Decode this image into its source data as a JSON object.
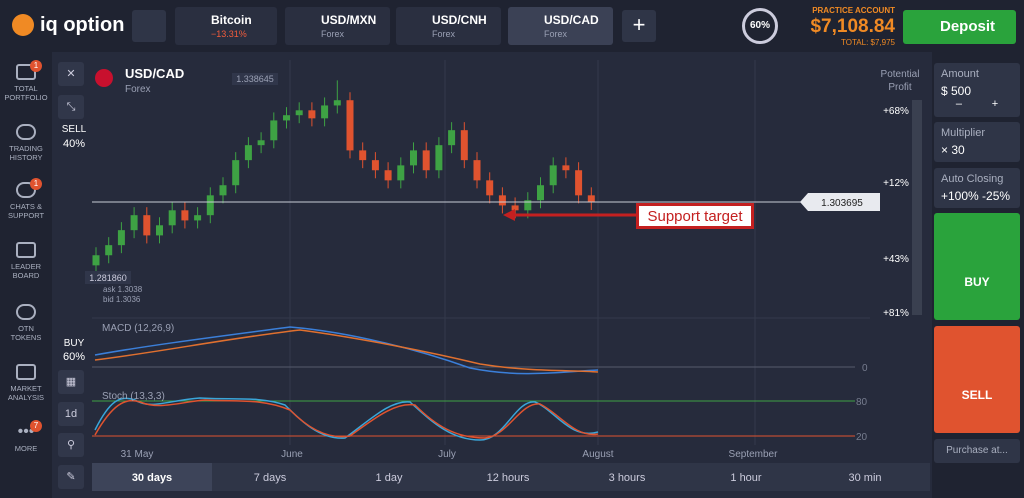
{
  "header": {
    "logo": "iq option",
    "tabs": [
      {
        "name": "Bitcoin",
        "sub": "−13.31%"
      },
      {
        "name": "USD/MXN",
        "sub": "Forex"
      },
      {
        "name": "USD/CNH",
        "sub": "Forex"
      },
      {
        "name": "USD/CAD",
        "sub": "Forex"
      }
    ],
    "level": "60%",
    "account_label": "PRACTICE ACCOUNT",
    "balance": "$7,108.84",
    "total": "TOTAL: $7,975",
    "deposit": "Deposit"
  },
  "sidebar": {
    "items": [
      {
        "lines": [
          "TOTAL",
          "PORTFOLIO"
        ],
        "badge": "1"
      },
      {
        "lines": [
          "TRADING",
          "HISTORY"
        ]
      },
      {
        "lines": [
          "CHATS &",
          "SUPPORT"
        ],
        "badge": "1"
      },
      {
        "lines": [
          "LEADER",
          "BOARD"
        ]
      },
      {
        "lines": [
          "OTN",
          "TOKENS"
        ]
      },
      {
        "lines": [
          "MARKET",
          "ANALYSIS"
        ]
      },
      {
        "lines": [
          "MORE"
        ],
        "badge": "7"
      }
    ]
  },
  "chart": {
    "asset": "USD/CAD",
    "asset_type": "Forex",
    "sell_label": "SELL",
    "sell_pct": "40%",
    "buy_label": "BUY",
    "buy_pct": "60%",
    "high_label": "1.338645",
    "low_label": "1.281860",
    "ask": "ask 1.3038",
    "bid": "bid 1.3036",
    "current": {
      "value": 1.303695,
      "label": "1.303695"
    },
    "annotation": "Support target",
    "potential_profit": [
      "Potential",
      "Profit"
    ],
    "profit_levels": [
      "+68%",
      "+12%",
      "+43%",
      "+81%"
    ],
    "macd": "MACD (12,26,9)",
    "stoch": "Stoch (13,3,3)",
    "macd_level": "0",
    "stoch_levels": [
      "80",
      "20"
    ],
    "x_labels": [
      "31 May",
      "June",
      "July",
      "August",
      "September"
    ],
    "timeframes": [
      "30 days",
      "7 days",
      "1 day",
      "12 hours",
      "3 hours",
      "1 hour",
      "30 min"
    ],
    "tool_label": "1d",
    "ylim": [
      1.279,
      1.341
    ],
    "candles": [
      [
        1.2855,
        1.2907,
        1.2819,
        1.2884
      ],
      [
        1.2884,
        1.2936,
        1.2861,
        1.2913
      ],
      [
        1.2913,
        1.2979,
        1.289,
        1.2956
      ],
      [
        1.2956,
        1.3022,
        1.2933,
        1.2999
      ],
      [
        1.2999,
        1.3022,
        1.2918,
        1.2941
      ],
      [
        1.2941,
        1.2993,
        1.2918,
        1.297
      ],
      [
        1.297,
        1.3036,
        1.2947,
        1.3013
      ],
      [
        1.3013,
        1.3036,
        1.2961,
        1.2984
      ],
      [
        1.2984,
        1.3022,
        1.2961,
        1.2999
      ],
      [
        1.2999,
        1.3079,
        1.2976,
        1.3056
      ],
      [
        1.3056,
        1.3108,
        1.3033,
        1.3085
      ],
      [
        1.3085,
        1.318,
        1.3062,
        1.3157
      ],
      [
        1.3157,
        1.3223,
        1.3134,
        1.32
      ],
      [
        1.32,
        1.3237,
        1.3177,
        1.3214
      ],
      [
        1.3214,
        1.3294,
        1.3191,
        1.3271
      ],
      [
        1.3271,
        1.3309,
        1.3248,
        1.3286
      ],
      [
        1.3286,
        1.3323,
        1.3263,
        1.33
      ],
      [
        1.33,
        1.3323,
        1.3254,
        1.3277
      ],
      [
        1.3277,
        1.3337,
        1.3254,
        1.3314
      ],
      [
        1.3314,
        1.3386,
        1.3291,
        1.3329
      ],
      [
        1.3329,
        1.3352,
        1.3162,
        1.3185
      ],
      [
        1.3185,
        1.3208,
        1.3134,
        1.3157
      ],
      [
        1.3157,
        1.318,
        1.3105,
        1.3128
      ],
      [
        1.3128,
        1.3151,
        1.3076,
        1.3099
      ],
      [
        1.3099,
        1.3165,
        1.3076,
        1.3142
      ],
      [
        1.3142,
        1.3208,
        1.3119,
        1.3185
      ],
      [
        1.3185,
        1.3208,
        1.3105,
        1.3128
      ],
      [
        1.3128,
        1.3223,
        1.3105,
        1.32
      ],
      [
        1.32,
        1.3266,
        1.3177,
        1.3243
      ],
      [
        1.3243,
        1.3266,
        1.3134,
        1.3157
      ],
      [
        1.3157,
        1.318,
        1.3076,
        1.3099
      ],
      [
        1.3099,
        1.3122,
        1.3033,
        1.3056
      ],
      [
        1.3056,
        1.3079,
        1.3004,
        1.3027
      ],
      [
        1.3027,
        1.305,
        1.299,
        1.3013
      ],
      [
        1.3013,
        1.3065,
        1.299,
        1.3042
      ],
      [
        1.3042,
        1.3108,
        1.3019,
        1.3085
      ],
      [
        1.3085,
        1.3165,
        1.3062,
        1.3142
      ],
      [
        1.3142,
        1.3165,
        1.3105,
        1.3128
      ],
      [
        1.3128,
        1.3151,
        1.3033,
        1.3056
      ],
      [
        1.3056,
        1.3079,
        1.3014,
        1.3037
      ]
    ]
  },
  "trade": {
    "amount_label": "Amount",
    "amount": "$ 500",
    "multiplier_label": "Multiplier",
    "multiplier": "× 30",
    "auto_label": "Auto Closing",
    "auto": "+100% -25%",
    "buy": "BUY",
    "sell": "SELL",
    "purchase": "Purchase at..."
  }
}
